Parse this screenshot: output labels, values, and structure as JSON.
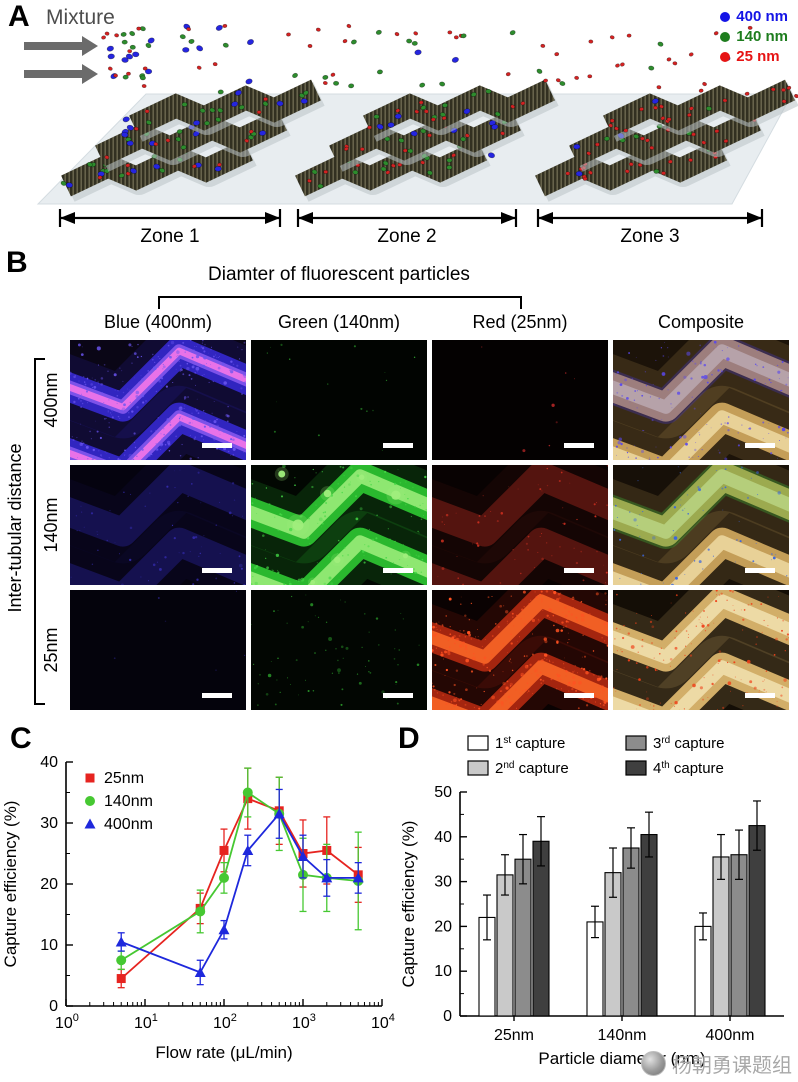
{
  "panelA": {
    "label": "A",
    "mixture_label": "Mixture",
    "legend": [
      {
        "label": "400 nm",
        "color": "#1414e6"
      },
      {
        "label": "140 nm",
        "color": "#1e7d1e"
      },
      {
        "label": "25 nm",
        "color": "#e61414"
      }
    ],
    "zones": [
      "Zone 1",
      "Zone 2",
      "Zone 3"
    ]
  },
  "panelB": {
    "label": "B",
    "title": "Diamter of fluorescent particles",
    "column_headers": [
      "Blue (400nm)",
      "Green (140nm)",
      "Red (25nm)",
      "Composite"
    ],
    "row_group_label": "Inter-tubular distance",
    "row_labels": [
      "400nm",
      "140nm",
      "25nm"
    ],
    "tiles": [
      [
        {
          "bg": "#0a0616",
          "band": "#3428cc",
          "band2": "#8a5af0",
          "core": "#ee74e8",
          "speckle": "#6a55f0",
          "density": "high",
          "along": true
        },
        {
          "bg": "#010401",
          "speckle": "#2faa2f",
          "density": "sparse"
        },
        {
          "bg": "#040101",
          "speckle": "#aa2424",
          "density": "rare"
        },
        {
          "bg": "#1c1309",
          "band": "#d0a85e",
          "band2": "#eed9a2",
          "overlay": "#4336d4",
          "speckle": "#5a48ec",
          "density": "medium",
          "along": true
        }
      ],
      [
        {
          "bg": "#05030f",
          "band": "#171254",
          "speckle": "#352cb0",
          "density": "low",
          "along": true
        },
        {
          "bg": "#020702",
          "band": "#2ec432",
          "band2": "#a0ee7c",
          "speckle": "#44d846",
          "blobs": 9,
          "density": "medium",
          "along": true
        },
        {
          "bg": "#080202",
          "band": "#5a1610",
          "speckle": "#d03020",
          "density": "low",
          "along": true
        },
        {
          "bg": "#171008",
          "band": "#d0a85e",
          "band2": "#eed9a2",
          "overlay": "#3ec83c",
          "speckle": "#3a66e0",
          "density": "low",
          "along": true
        }
      ],
      [
        {
          "bg": "#04030c",
          "speckle": "#241e70",
          "density": "rare"
        },
        {
          "bg": "#020602",
          "speckle": "#2a9a2a",
          "density": "low"
        },
        {
          "bg": "#0a0202",
          "band": "#b02810",
          "band2": "#ff6a28",
          "speckle": "#ff5222",
          "density": "high",
          "along": true
        },
        {
          "bg": "#140e06",
          "band": "#e0ba70",
          "band2": "#f2e2b0",
          "speckle": "#f04018",
          "density": "medium",
          "along": true
        }
      ]
    ]
  },
  "panelC": {
    "label": "C"
  },
  "panelD": {
    "label": "D"
  },
  "chart_data": [
    {
      "id": "flow-rate-line-chart",
      "type": "line",
      "title": "",
      "xlabel": "Flow rate (μL/min)",
      "ylabel": "Capture efficiency (%)",
      "x_scale": "log",
      "xlim": [
        1,
        10000
      ],
      "ylim": [
        0,
        40
      ],
      "yticks": [
        0,
        10,
        20,
        30,
        40
      ],
      "xtick_exponents": [
        0,
        1,
        2,
        3,
        4
      ],
      "legend_position": "top-left",
      "x": [
        5,
        50,
        100,
        200,
        500,
        1000,
        2000,
        5000
      ],
      "series": [
        {
          "name": "25nm",
          "color": "#e62420",
          "marker": "square",
          "y": [
            4.5,
            16,
            25.5,
            34,
            32,
            25,
            25.5,
            21.5
          ],
          "yerr": [
            1.5,
            2.5,
            3.5,
            5,
            5.5,
            5.5,
            5.5,
            4.5
          ]
        },
        {
          "name": "140nm",
          "color": "#46c832",
          "marker": "circle",
          "y": [
            7.5,
            15.5,
            21,
            35,
            31.5,
            21.5,
            21,
            20.5
          ],
          "yerr": [
            1.5,
            3.5,
            2.5,
            4,
            6,
            6,
            5.5,
            8
          ]
        },
        {
          "name": "400nm",
          "color": "#1e28dc",
          "marker": "triangle",
          "y": [
            10.5,
            5.5,
            12.5,
            25.5,
            31.5,
            24.5,
            21,
            21
          ],
          "yerr": [
            1.5,
            2,
            1.5,
            2.5,
            4,
            3.5,
            3,
            2.5
          ]
        }
      ]
    },
    {
      "id": "repeat-capture-bar-chart",
      "type": "bar",
      "title": "",
      "xlabel": "Particle diameter (nm)",
      "ylabel": "Capture efficiency (%)",
      "ylim": [
        0,
        50
      ],
      "yticks": [
        0,
        10,
        20,
        30,
        40,
        50
      ],
      "categories": [
        "25nm",
        "140nm",
        "400nm"
      ],
      "series": [
        {
          "name": "1st capture",
          "ordinal": "1",
          "suffix": "st",
          "rest": " capture",
          "color": "#ffffff",
          "values": [
            22,
            21,
            20
          ],
          "yerr": [
            5,
            3.5,
            3
          ]
        },
        {
          "name": "2nd capture",
          "ordinal": "2",
          "suffix": "nd",
          "rest": " capture",
          "color": "#c9c9c9",
          "values": [
            31.5,
            32,
            35.5
          ],
          "yerr": [
            4.5,
            5.5,
            5
          ]
        },
        {
          "name": "3rd capture",
          "ordinal": "3",
          "suffix": "rd",
          "rest": " capture",
          "color": "#8c8c8c",
          "values": [
            35,
            37.5,
            36
          ],
          "yerr": [
            5.5,
            4.5,
            5.5
          ]
        },
        {
          "name": "4th capture",
          "ordinal": "4",
          "suffix": "th",
          "rest": " capture",
          "color": "#3f3f3f",
          "values": [
            39,
            40.5,
            42.5
          ],
          "yerr": [
            5.5,
            5,
            5.5
          ]
        }
      ]
    }
  ],
  "watermark": {
    "text": "杨朝勇课题组"
  }
}
